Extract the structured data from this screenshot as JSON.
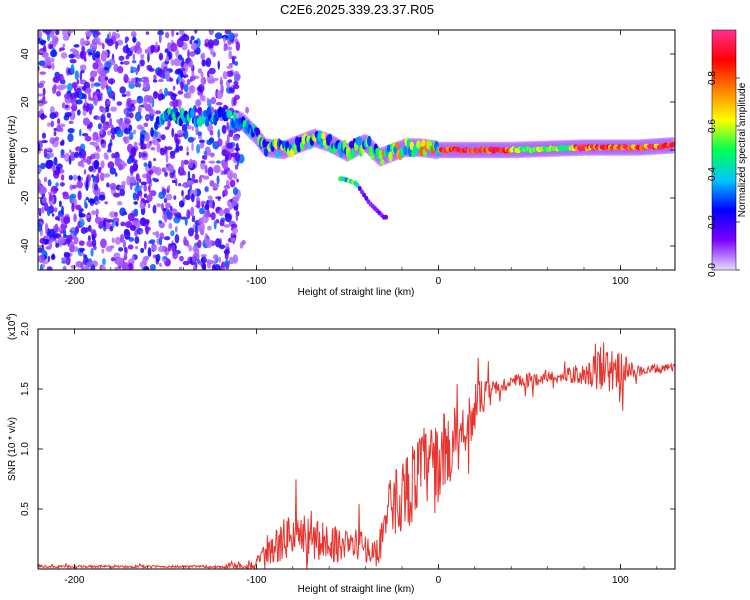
{
  "title": "C2E6.2025.339.23.37.R05",
  "chart_data": [
    {
      "type": "heatmap",
      "name": "spectrogram",
      "xlabel": "Height of straight line (km)",
      "ylabel": "Frequency (Hz)",
      "xlim": [
        -220,
        130
      ],
      "ylim": [
        -50,
        50
      ],
      "xticks": [
        -200,
        -100,
        0,
        100
      ],
      "yticks": [
        -40,
        -20,
        0,
        20,
        40
      ],
      "xtick_labels": [
        "-200",
        "-100",
        "0",
        "100"
      ],
      "ytick_labels": [
        "-40",
        "-20",
        "0",
        "20",
        "40"
      ],
      "noise_region_x": [
        -220,
        -110
      ],
      "track": [
        {
          "x": -155,
          "y": 12
        },
        {
          "x": -145,
          "y": 15
        },
        {
          "x": -135,
          "y": 13
        },
        {
          "x": -120,
          "y": 14
        },
        {
          "x": -108,
          "y": 12
        },
        {
          "x": -100,
          "y": 6
        },
        {
          "x": -95,
          "y": 1
        },
        {
          "x": -85,
          "y": 0
        },
        {
          "x": -75,
          "y": 3
        },
        {
          "x": -68,
          "y": 5
        },
        {
          "x": -60,
          "y": 3
        },
        {
          "x": -50,
          "y": -1
        },
        {
          "x": -40,
          "y": 3
        },
        {
          "x": -32,
          "y": -3
        },
        {
          "x": -25,
          "y": -1
        },
        {
          "x": -18,
          "y": 1
        },
        {
          "x": -10,
          "y": 1
        },
        {
          "x": 0,
          "y": 0
        },
        {
          "x": 10,
          "y": 0
        },
        {
          "x": 40,
          "y": 0
        },
        {
          "x": 80,
          "y": 1
        },
        {
          "x": 110,
          "y": 1
        },
        {
          "x": 130,
          "y": 2
        }
      ],
      "branch": [
        {
          "x": -52,
          "y": -12
        },
        {
          "x": -45,
          "y": -14
        },
        {
          "x": -38,
          "y": -22
        },
        {
          "x": -30,
          "y": -28
        }
      ],
      "colorbar": {
        "label": "Normalized spectral amplitude",
        "range": [
          0,
          1
        ],
        "ticks": [
          0.0,
          0.2,
          0.4,
          0.6,
          0.8
        ],
        "tick_labels": [
          "0.0",
          "0.2",
          "0.4",
          "0.6",
          "0.8"
        ],
        "colors": [
          "#e6dcff",
          "#7a00ff",
          "#0000ff",
          "#00c8ff",
          "#00ff50",
          "#ffff00",
          "#ff8000",
          "#ff0000",
          "#ff3090"
        ]
      }
    },
    {
      "type": "line",
      "name": "snr",
      "xlabel": "Height of straight line (km)",
      "ylabel": "SNR (10 * v/v)",
      "scale_label_base": "(x10",
      "scale_label_exp": "4",
      "scale_label_end": ")",
      "xlim": [
        -220,
        130
      ],
      "ylim": [
        0,
        2.0
      ],
      "xticks": [
        -200,
        -100,
        0,
        100
      ],
      "yticks": [
        0.5,
        1.0,
        1.5,
        2.0
      ],
      "xtick_labels": [
        "-200",
        "-100",
        "0",
        "100"
      ],
      "ytick_labels": [
        "0.5",
        "1.0",
        "1.5",
        "2.0"
      ],
      "color": "#e8342e",
      "envelope": [
        {
          "x": -220,
          "y": 0.02
        },
        {
          "x": -120,
          "y": 0.02
        },
        {
          "x": -100,
          "y": 0.04
        },
        {
          "x": -90,
          "y": 0.18
        },
        {
          "x": -80,
          "y": 0.3
        },
        {
          "x": -72,
          "y": 0.24
        },
        {
          "x": -60,
          "y": 0.22
        },
        {
          "x": -50,
          "y": 0.2
        },
        {
          "x": -42,
          "y": 0.2
        },
        {
          "x": -34,
          "y": 0.12
        },
        {
          "x": -28,
          "y": 0.45
        },
        {
          "x": -22,
          "y": 0.6
        },
        {
          "x": -15,
          "y": 0.7
        },
        {
          "x": -8,
          "y": 0.85
        },
        {
          "x": 0,
          "y": 0.9
        },
        {
          "x": 8,
          "y": 1.05
        },
        {
          "x": 15,
          "y": 1.2
        },
        {
          "x": 22,
          "y": 1.4
        },
        {
          "x": 30,
          "y": 1.5
        },
        {
          "x": 40,
          "y": 1.55
        },
        {
          "x": 60,
          "y": 1.6
        },
        {
          "x": 80,
          "y": 1.62
        },
        {
          "x": 90,
          "y": 1.65
        },
        {
          "x": 100,
          "y": 1.65
        },
        {
          "x": 110,
          "y": 1.65
        },
        {
          "x": 130,
          "y": 1.68
        }
      ],
      "noise_amplitude": [
        {
          "x": -220,
          "y": 0.01
        },
        {
          "x": -120,
          "y": 0.01
        },
        {
          "x": -100,
          "y": 0.06
        },
        {
          "x": -88,
          "y": 0.16
        },
        {
          "x": -76,
          "y": 0.22
        },
        {
          "x": -60,
          "y": 0.16
        },
        {
          "x": -45,
          "y": 0.14
        },
        {
          "x": -35,
          "y": 0.1
        },
        {
          "x": -25,
          "y": 0.3
        },
        {
          "x": -10,
          "y": 0.35
        },
        {
          "x": 5,
          "y": 0.35
        },
        {
          "x": 18,
          "y": 0.22
        },
        {
          "x": 30,
          "y": 0.08
        },
        {
          "x": 60,
          "y": 0.05
        },
        {
          "x": 80,
          "y": 0.08
        },
        {
          "x": 88,
          "y": 0.18
        },
        {
          "x": 100,
          "y": 0.18
        },
        {
          "x": 108,
          "y": 0.05
        },
        {
          "x": 130,
          "y": 0.03
        }
      ]
    }
  ]
}
